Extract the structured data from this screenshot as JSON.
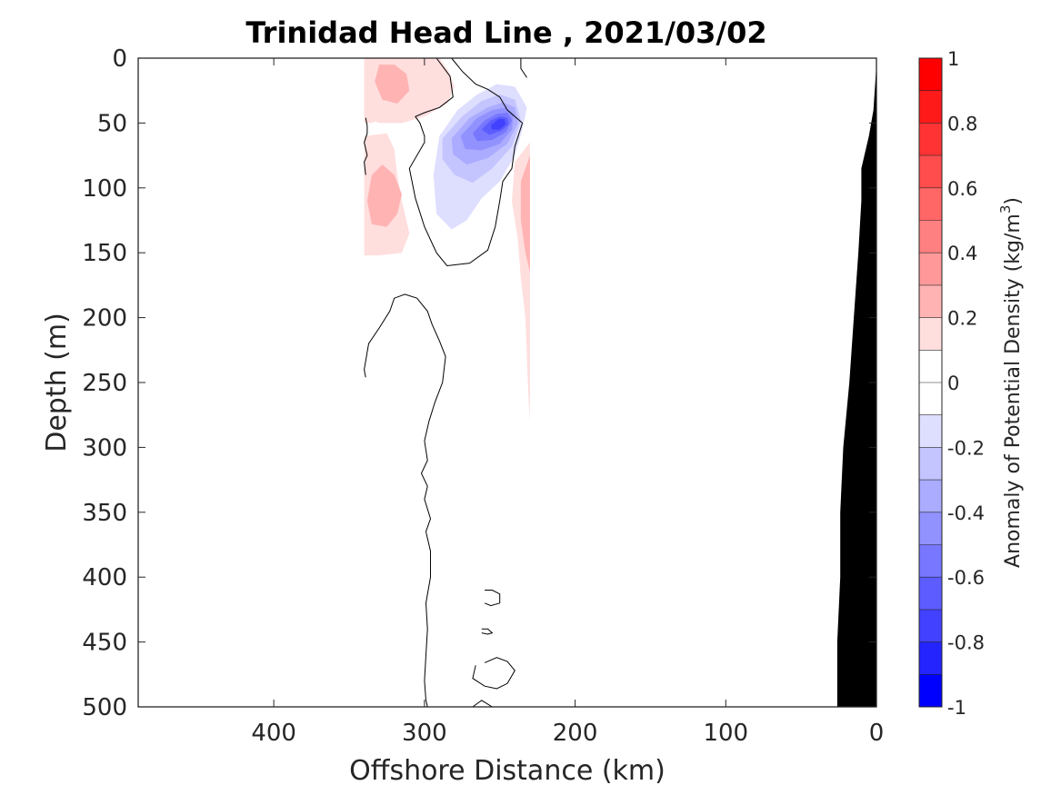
{
  "chart_data": {
    "type": "contour",
    "title": "Trinidad Head Line , 2021/03/02",
    "xlabel": "Offshore Distance (km)",
    "ylabel": "Depth (m)",
    "xlim": [
      490,
      0
    ],
    "ylim": [
      0,
      500
    ],
    "x_ticks": [
      400,
      300,
      200,
      100,
      0
    ],
    "y_ticks": [
      0,
      50,
      100,
      150,
      200,
      250,
      300,
      350,
      400,
      450,
      500
    ],
    "x_reversed": true,
    "y_reversed": true,
    "colorbar": {
      "label": "Anomaly of Potential Density (kg/m",
      "label_superscript": "3",
      "label_suffix": ")",
      "range": [
        -1,
        1
      ],
      "ticks": [
        1,
        0.8,
        0.6,
        0.4,
        0.2,
        0,
        -0.2,
        -0.4,
        -0.6,
        -0.8,
        -1
      ],
      "levels": [
        {
          "lo": 0.9,
          "hi": 1.0,
          "color": "#ff0000"
        },
        {
          "lo": 0.8,
          "hi": 0.9,
          "color": "#ff1a1a"
        },
        {
          "lo": 0.7,
          "hi": 0.8,
          "color": "#ff3333"
        },
        {
          "lo": 0.6,
          "hi": 0.7,
          "color": "#ff4d4d"
        },
        {
          "lo": 0.5,
          "hi": 0.6,
          "color": "#ff6666"
        },
        {
          "lo": 0.4,
          "hi": 0.5,
          "color": "#ff8080"
        },
        {
          "lo": 0.3,
          "hi": 0.4,
          "color": "#ff9999"
        },
        {
          "lo": 0.2,
          "hi": 0.3,
          "color": "#ffb3b3"
        },
        {
          "lo": 0.1,
          "hi": 0.2,
          "color": "#ffdede"
        },
        {
          "lo": 0.0,
          "hi": 0.1,
          "color": "#ffffff"
        },
        {
          "lo": -0.1,
          "hi": 0.0,
          "color": "#ffffff"
        },
        {
          "lo": -0.2,
          "hi": -0.1,
          "color": "#dedeff"
        },
        {
          "lo": -0.3,
          "hi": -0.2,
          "color": "#c4c4ff"
        },
        {
          "lo": -0.4,
          "hi": -0.3,
          "color": "#ababff"
        },
        {
          "lo": -0.5,
          "hi": -0.4,
          "color": "#9292ff"
        },
        {
          "lo": -0.6,
          "hi": -0.5,
          "color": "#7777ff"
        },
        {
          "lo": -0.7,
          "hi": -0.6,
          "color": "#5c5cff"
        },
        {
          "lo": -0.8,
          "hi": -0.7,
          "color": "#4141ff"
        },
        {
          "lo": -0.9,
          "hi": -0.8,
          "color": "#2424ff"
        },
        {
          "lo": -1.0,
          "hi": -0.9,
          "color": "#0000ff"
        }
      ]
    },
    "data_extent_x_km": [
      340,
      230
    ],
    "filled_regions": [
      {
        "name": "positive-anomaly-upper-west",
        "level": 0.2,
        "color": "#ffdede",
        "points": [
          [
            340,
            0
          ],
          [
            318,
            0
          ],
          [
            315,
            18
          ],
          [
            318,
            35
          ],
          [
            325,
            45
          ],
          [
            335,
            50
          ],
          [
            340,
            50
          ]
        ]
      },
      {
        "name": "positive-anomaly-upper",
        "level": 0.2,
        "color": "#ffdede",
        "points": [
          [
            320,
            0
          ],
          [
            290,
            0
          ],
          [
            284,
            10
          ],
          [
            280,
            22
          ],
          [
            285,
            35
          ],
          [
            300,
            45
          ],
          [
            315,
            50
          ],
          [
            330,
            50
          ],
          [
            340,
            45
          ],
          [
            340,
            5
          ]
        ]
      },
      {
        "name": "positive-anomaly-mid",
        "level": 0.2,
        "color": "#ffdede",
        "points": [
          [
            340,
            60
          ],
          [
            325,
            58
          ],
          [
            320,
            70
          ],
          [
            318,
            90
          ],
          [
            315,
            110
          ],
          [
            310,
            135
          ],
          [
            315,
            150
          ],
          [
            330,
            152
          ],
          [
            340,
            152
          ]
        ]
      },
      {
        "name": "positive-anomaly-mid-core",
        "level": 0.3,
        "color": "#ffb3b3",
        "points": [
          [
            335,
            90
          ],
          [
            328,
            82
          ],
          [
            320,
            90
          ],
          [
            315,
            105
          ],
          [
            318,
            120
          ],
          [
            325,
            130
          ],
          [
            335,
            128
          ],
          [
            338,
            110
          ]
        ]
      },
      {
        "name": "positive-anomaly-upper-core",
        "level": 0.3,
        "color": "#ffb3b3",
        "points": [
          [
            330,
            5
          ],
          [
            320,
            5
          ],
          [
            312,
            12
          ],
          [
            310,
            25
          ],
          [
            318,
            35
          ],
          [
            328,
            32
          ],
          [
            333,
            18
          ]
        ]
      },
      {
        "name": "positive-anomaly-east",
        "level": 0.2,
        "color": "#ffdede",
        "points": [
          [
            230,
            65
          ],
          [
            240,
            80
          ],
          [
            242,
            110
          ],
          [
            238,
            140
          ],
          [
            236,
            170
          ],
          [
            233,
            200
          ],
          [
            232,
            230
          ],
          [
            231,
            260
          ],
          [
            230,
            280
          ]
        ]
      },
      {
        "name": "positive-anomaly-east-core",
        "level": 0.3,
        "color": "#ffb3b3",
        "points": [
          [
            230,
            75
          ],
          [
            236,
            95
          ],
          [
            236,
            125
          ],
          [
            233,
            150
          ],
          [
            230,
            165
          ]
        ]
      },
      {
        "name": "negative-anomaly-02",
        "level": -0.2,
        "color": "#dedeff",
        "points": [
          [
            290,
            60
          ],
          [
            278,
            40
          ],
          [
            265,
            28
          ],
          [
            252,
            20
          ],
          [
            240,
            22
          ],
          [
            232,
            38
          ],
          [
            235,
            55
          ],
          [
            240,
            75
          ],
          [
            250,
            95
          ],
          [
            262,
            108
          ],
          [
            272,
            125
          ],
          [
            282,
            132
          ],
          [
            292,
            120
          ],
          [
            294,
            90
          ]
        ]
      },
      {
        "name": "negative-anomaly-03",
        "level": -0.3,
        "color": "#c4c4ff",
        "points": [
          [
            288,
            62
          ],
          [
            275,
            45
          ],
          [
            262,
            33
          ],
          [
            250,
            28
          ],
          [
            240,
            32
          ],
          [
            236,
            48
          ],
          [
            242,
            68
          ],
          [
            255,
            85
          ],
          [
            268,
            96
          ],
          [
            280,
            90
          ],
          [
            288,
            78
          ]
        ]
      },
      {
        "name": "negative-anomaly-04",
        "level": -0.4,
        "color": "#ababff",
        "points": [
          [
            282,
            62
          ],
          [
            270,
            46
          ],
          [
            258,
            38
          ],
          [
            248,
            34
          ],
          [
            240,
            38
          ],
          [
            238,
            50
          ],
          [
            245,
            66
          ],
          [
            258,
            77
          ],
          [
            272,
            82
          ],
          [
            281,
            74
          ]
        ]
      },
      {
        "name": "negative-anomaly-05",
        "level": -0.5,
        "color": "#9292ff",
        "points": [
          [
            276,
            60
          ],
          [
            265,
            46
          ],
          [
            255,
            40
          ],
          [
            246,
            38
          ],
          [
            241,
            43
          ],
          [
            242,
            55
          ],
          [
            250,
            66
          ],
          [
            262,
            71
          ],
          [
            273,
            70
          ]
        ]
      },
      {
        "name": "negative-anomaly-06",
        "level": -0.6,
        "color": "#7777ff",
        "points": [
          [
            268,
            58
          ],
          [
            260,
            48
          ],
          [
            252,
            43
          ],
          [
            245,
            42
          ],
          [
            242,
            48
          ],
          [
            246,
            57
          ],
          [
            255,
            63
          ],
          [
            265,
            64
          ]
        ]
      },
      {
        "name": "negative-anomaly-07",
        "level": -0.7,
        "color": "#5c5cff",
        "points": [
          [
            262,
            55
          ],
          [
            256,
            48
          ],
          [
            250,
            45
          ],
          [
            245,
            46
          ],
          [
            244,
            51
          ],
          [
            249,
            56
          ],
          [
            257,
            59
          ]
        ]
      },
      {
        "name": "negative-anomaly-08",
        "level": -0.8,
        "color": "#4141ff",
        "points": [
          [
            256,
            52
          ],
          [
            251,
            47
          ],
          [
            247,
            47
          ],
          [
            246,
            51
          ],
          [
            250,
            55
          ],
          [
            255,
            55
          ]
        ]
      }
    ],
    "zero_contours": [
      {
        "name": "zero-contour-1",
        "points": [
          [
            339,
            46
          ],
          [
            338,
            52
          ],
          [
            338,
            58
          ],
          [
            340,
            65
          ],
          [
            338,
            75
          ],
          [
            340,
            80
          ],
          [
            339,
            90
          ]
        ]
      },
      {
        "name": "zero-contour-2",
        "points": [
          [
            282,
            0
          ],
          [
            275,
            10
          ],
          [
            266,
            20
          ],
          [
            258,
            24
          ],
          [
            250,
            30
          ],
          [
            245,
            40
          ],
          [
            240,
            45
          ],
          [
            235,
            50
          ]
        ]
      },
      {
        "name": "zero-contour-3",
        "points": [
          [
            236,
            0
          ],
          [
            236,
            8
          ],
          [
            232,
            15
          ]
        ]
      },
      {
        "name": "zero-contour-4",
        "points": [
          [
            235,
            50
          ],
          [
            240,
            68
          ],
          [
            242,
            85
          ],
          [
            248,
            95
          ],
          [
            250,
            110
          ],
          [
            253,
            130
          ],
          [
            258,
            148
          ],
          [
            270,
            158
          ],
          [
            285,
            160
          ],
          [
            292,
            150
          ],
          [
            300,
            130
          ],
          [
            306,
            108
          ],
          [
            310,
            85
          ],
          [
            300,
            65
          ],
          [
            300,
            60
          ],
          [
            303,
            50
          ],
          [
            306,
            45
          ],
          [
            300,
            42
          ],
          [
            290,
            38
          ],
          [
            281,
            30
          ],
          [
            283,
            14
          ],
          [
            292,
            0
          ]
        ]
      },
      {
        "name": "zero-contour-5",
        "points": [
          [
            339,
            246
          ],
          [
            340,
            240
          ],
          [
            337,
            220
          ],
          [
            330,
            208
          ],
          [
            323,
            195
          ],
          [
            320,
            185
          ],
          [
            313,
            182
          ],
          [
            305,
            185
          ],
          [
            298,
            195
          ],
          [
            295,
            205
          ],
          [
            290,
            218
          ],
          [
            286,
            230
          ],
          [
            288,
            250
          ],
          [
            293,
            265
          ],
          [
            297,
            280
          ],
          [
            300,
            295
          ],
          [
            298,
            310
          ],
          [
            302,
            320
          ],
          [
            298,
            330
          ],
          [
            300,
            340
          ],
          [
            296,
            355
          ],
          [
            299,
            365
          ],
          [
            296,
            380
          ],
          [
            296,
            400
          ],
          [
            299,
            420
          ],
          [
            298,
            440
          ],
          [
            299,
            460
          ],
          [
            300,
            480
          ],
          [
            299,
            495
          ],
          [
            298,
            500
          ]
        ]
      },
      {
        "name": "zero-contour-6",
        "points": [
          [
            260,
            410
          ],
          [
            255,
            410
          ],
          [
            250,
            413
          ],
          [
            250,
            420
          ],
          [
            256,
            422
          ],
          [
            260,
            420
          ]
        ]
      },
      {
        "name": "zero-contour-7",
        "points": [
          [
            262,
            440
          ],
          [
            258,
            440
          ],
          [
            255,
            443
          ],
          [
            258,
            444
          ],
          [
            262,
            443
          ]
        ]
      },
      {
        "name": "zero-contour-8",
        "points": [
          [
            260,
            466
          ],
          [
            252,
            462
          ],
          [
            245,
            465
          ],
          [
            240,
            472
          ],
          [
            245,
            482
          ],
          [
            252,
            486
          ],
          [
            260,
            484
          ],
          [
            268,
            478
          ],
          [
            266,
            468
          ]
        ]
      },
      {
        "name": "zero-contour-9",
        "points": [
          [
            268,
            500
          ],
          [
            262,
            495
          ],
          [
            255,
            500
          ]
        ]
      }
    ],
    "bathymetry": {
      "color": "#000000",
      "points": [
        [
          0,
          0
        ],
        [
          0,
          5
        ],
        [
          2,
          40
        ],
        [
          5,
          60
        ],
        [
          10,
          85
        ],
        [
          10,
          110
        ],
        [
          12,
          150
        ],
        [
          15,
          200
        ],
        [
          18,
          250
        ],
        [
          22,
          300
        ],
        [
          24,
          350
        ],
        [
          24,
          400
        ],
        [
          26,
          450
        ],
        [
          26,
          500
        ],
        [
          0,
          500
        ]
      ]
    }
  }
}
